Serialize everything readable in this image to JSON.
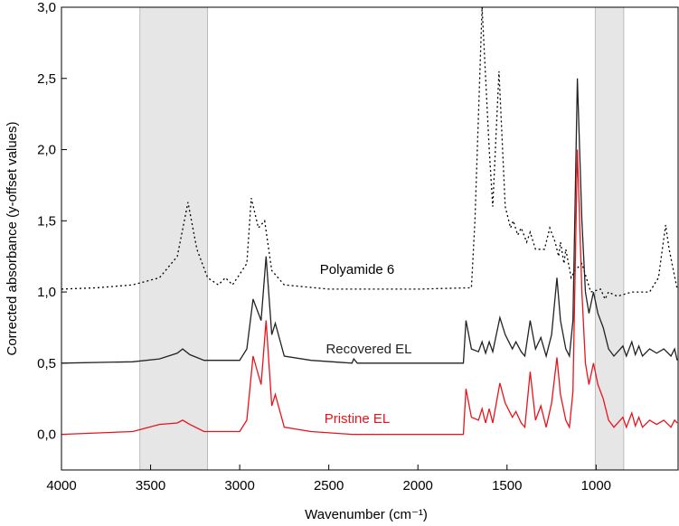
{
  "chart_data": {
    "type": "line",
    "xlabel": "Wavenumber (cm⁻¹)",
    "ylabel": "Corrected absorbance (y-offset values)",
    "xlim": [
      4000,
      540
    ],
    "ylim": [
      -0.25,
      3.0
    ],
    "xticks": [
      4000,
      3500,
      3000,
      2500,
      2000,
      1500,
      1000
    ],
    "yticks": [
      {
        "value": 0,
        "label": "0,0"
      },
      {
        "value": 0.5,
        "label": "0,5"
      },
      {
        "value": 1.0,
        "label": "1,0"
      },
      {
        "value": 1.5,
        "label": "1,5"
      },
      {
        "value": 2.0,
        "label": "2,0"
      },
      {
        "value": 2.5,
        "label": "2,5"
      },
      {
        "value": 3.0,
        "label": "3,0"
      }
    ],
    "shaded_regions": [
      [
        3560,
        3180
      ],
      [
        1005,
        845
      ]
    ],
    "series": [
      {
        "name": "Polyamide 6",
        "color": "#000000",
        "dash": "dotted",
        "x": [
          4000,
          3800,
          3600,
          3450,
          3350,
          3290,
          3240,
          3180,
          3120,
          3080,
          3040,
          2960,
          2935,
          2895,
          2860,
          2820,
          2750,
          2500,
          2000,
          1700,
          1680,
          1640,
          1600,
          1580,
          1545,
          1510,
          1480,
          1465,
          1440,
          1420,
          1390,
          1370,
          1340,
          1290,
          1260,
          1230,
          1210,
          1200,
          1180,
          1170,
          1140,
          1120,
          1080,
          1030,
          975,
          950,
          930,
          900,
          880,
          800,
          700,
          650,
          610,
          590,
          545
        ],
        "values": [
          1.02,
          1.03,
          1.05,
          1.1,
          1.25,
          1.63,
          1.3,
          1.1,
          1.05,
          1.1,
          1.05,
          1.2,
          1.66,
          1.45,
          1.5,
          1.15,
          1.05,
          1.02,
          1.02,
          1.03,
          1.5,
          3.0,
          2.0,
          1.6,
          2.55,
          1.6,
          1.45,
          1.5,
          1.4,
          1.45,
          1.35,
          1.42,
          1.3,
          1.3,
          1.45,
          1.35,
          1.25,
          1.35,
          1.2,
          1.3,
          1.1,
          1.15,
          1.2,
          1.0,
          1.02,
          0.95,
          1.0,
          0.98,
          0.97,
          1.0,
          1.0,
          1.1,
          1.47,
          1.3,
          1.02
        ]
      },
      {
        "name": "Recovered EL",
        "color": "#222222",
        "dash": "solid",
        "x": [
          4000,
          3600,
          3450,
          3350,
          3320,
          3280,
          3200,
          3000,
          2960,
          2925,
          2880,
          2852,
          2820,
          2800,
          2750,
          2600,
          2370,
          2360,
          2340,
          1745,
          1730,
          1700,
          1660,
          1640,
          1620,
          1600,
          1580,
          1540,
          1510,
          1470,
          1450,
          1420,
          1400,
          1370,
          1340,
          1310,
          1280,
          1250,
          1220,
          1200,
          1170,
          1150,
          1130,
          1105,
          1080,
          1060,
          1040,
          1015,
          990,
          960,
          930,
          900,
          850,
          830,
          800,
          780,
          760,
          740,
          700,
          660,
          620,
          580,
          560,
          545
        ],
        "values": [
          0.5,
          0.51,
          0.53,
          0.57,
          0.6,
          0.56,
          0.52,
          0.52,
          0.6,
          0.95,
          0.8,
          1.25,
          0.7,
          0.78,
          0.55,
          0.52,
          0.5,
          0.53,
          0.5,
          0.5,
          0.8,
          0.6,
          0.58,
          0.65,
          0.57,
          0.65,
          0.58,
          0.82,
          0.7,
          0.6,
          0.65,
          0.58,
          0.55,
          0.8,
          0.6,
          0.68,
          0.55,
          0.7,
          1.1,
          0.8,
          0.6,
          0.55,
          0.8,
          2.5,
          1.5,
          1.0,
          0.85,
          1.0,
          0.85,
          0.75,
          0.6,
          0.55,
          0.62,
          0.55,
          0.65,
          0.56,
          0.62,
          0.55,
          0.6,
          0.57,
          0.6,
          0.55,
          0.6,
          0.52
        ]
      },
      {
        "name": "Pristine EL",
        "color": "#e8141c",
        "dash": "solid",
        "x": [
          4000,
          3600,
          3450,
          3350,
          3320,
          3280,
          3200,
          3000,
          2960,
          2925,
          2880,
          2852,
          2820,
          2800,
          2750,
          2600,
          2370,
          1745,
          1730,
          1700,
          1660,
          1640,
          1620,
          1600,
          1580,
          1540,
          1510,
          1470,
          1450,
          1420,
          1400,
          1370,
          1340,
          1310,
          1280,
          1250,
          1220,
          1200,
          1170,
          1150,
          1130,
          1105,
          1080,
          1060,
          1040,
          1015,
          990,
          960,
          930,
          900,
          850,
          830,
          800,
          780,
          760,
          740,
          700,
          660,
          620,
          580,
          560,
          545
        ],
        "values": [
          0.0,
          0.02,
          0.07,
          0.08,
          0.1,
          0.07,
          0.02,
          0.02,
          0.1,
          0.55,
          0.35,
          0.8,
          0.2,
          0.28,
          0.05,
          0.02,
          0.0,
          0.0,
          0.32,
          0.12,
          0.1,
          0.18,
          0.08,
          0.18,
          0.08,
          0.36,
          0.22,
          0.12,
          0.16,
          0.08,
          0.05,
          0.44,
          0.1,
          0.2,
          0.05,
          0.22,
          0.54,
          0.28,
          0.1,
          0.05,
          0.3,
          2.0,
          1.0,
          0.5,
          0.35,
          0.5,
          0.35,
          0.25,
          0.1,
          0.05,
          0.12,
          0.05,
          0.15,
          0.06,
          0.12,
          0.05,
          0.1,
          0.07,
          0.1,
          0.05,
          0.1,
          0.08
        ]
      }
    ]
  }
}
